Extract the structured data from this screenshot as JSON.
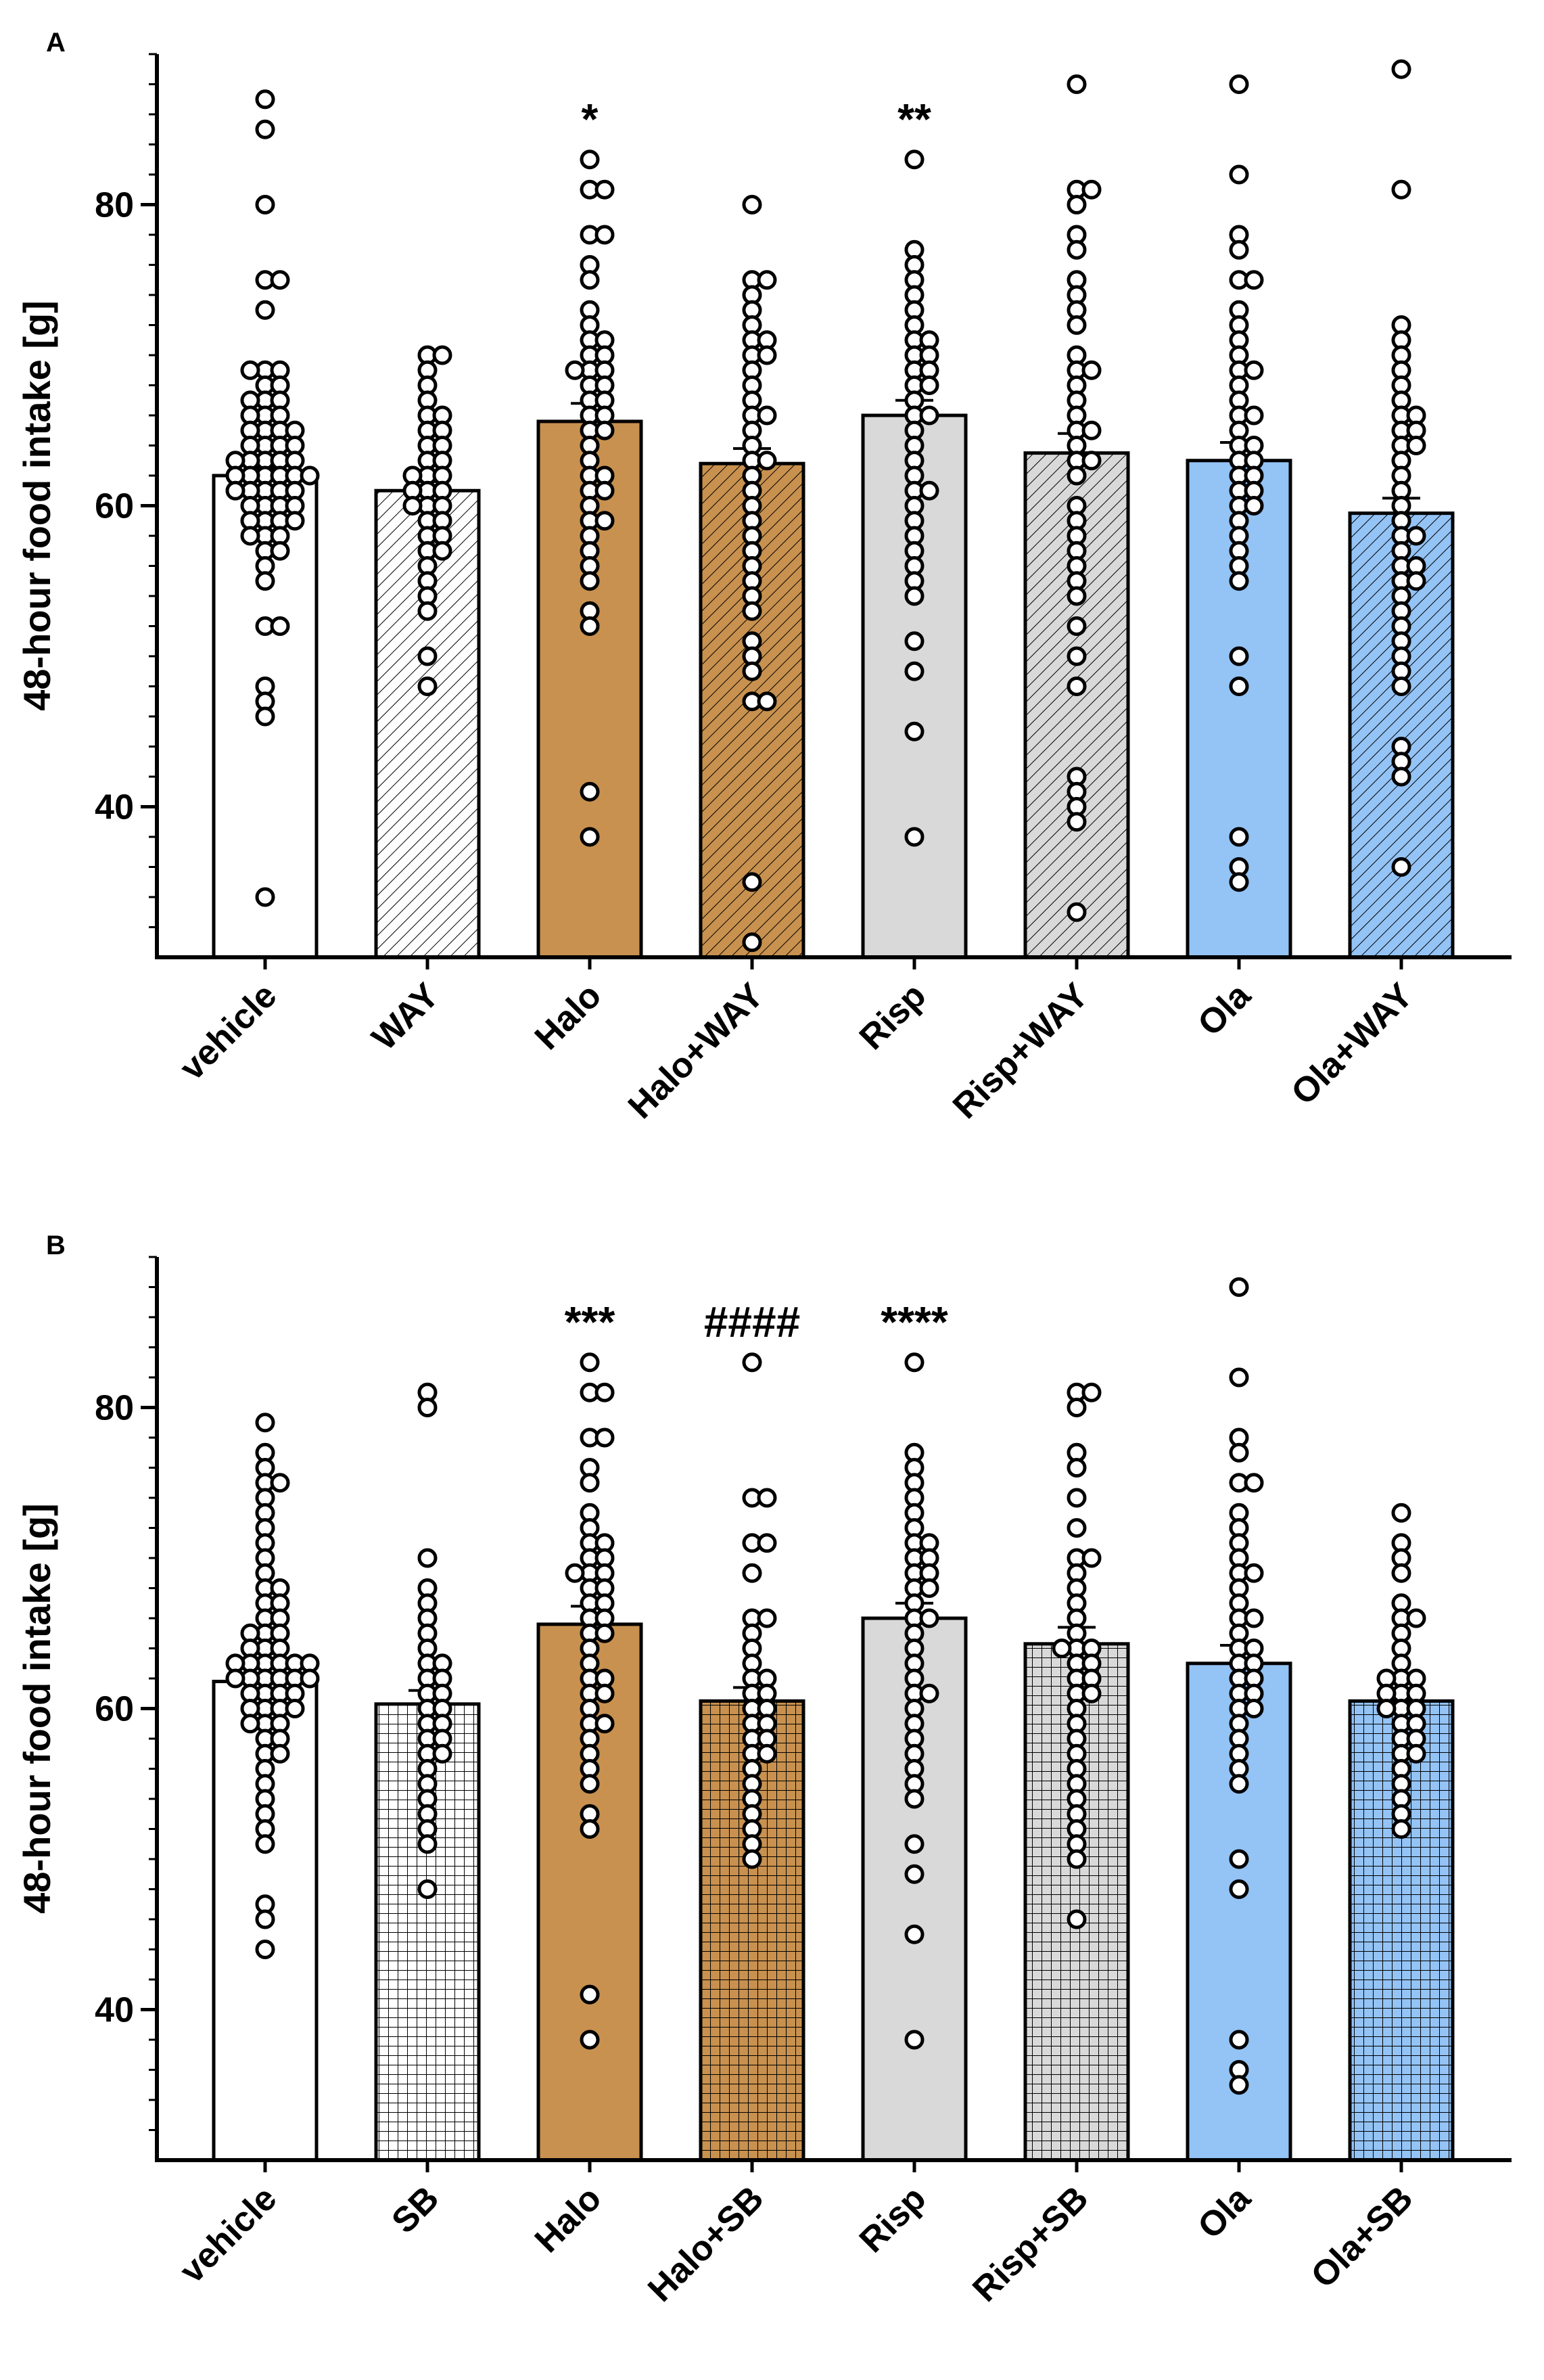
{
  "colors": {
    "white": "#ffffff",
    "halo": "#c8914f",
    "risp": "#d9d9d9",
    "ola": "#94c3f5",
    "axis": "#000000"
  },
  "chart_data": [
    {
      "type": "bar",
      "panel": "A",
      "ylabel": "48-hour food intake [g]",
      "ylim": [
        30,
        90
      ],
      "yticks": [
        40,
        60,
        80
      ],
      "categories": [
        "vehicle",
        "WAY",
        "Halo",
        "Halo+WAY",
        "Risp",
        "Risp+WAY",
        "Ola",
        "Ola+WAY"
      ],
      "values": [
        62,
        61,
        65.6,
        62.8,
        66,
        63.5,
        63,
        59.5
      ],
      "sem": [
        0.5,
        0.6,
        1.2,
        1.0,
        1.0,
        1.3,
        1.2,
        1.0
      ],
      "fills": [
        "white",
        "white",
        "halo",
        "halo",
        "risp",
        "risp",
        "ola",
        "ola"
      ],
      "patterns": [
        "none",
        "hatch",
        "none",
        "hatch",
        "none",
        "hatch",
        "none",
        "hatch"
      ],
      "significance": [
        "",
        "",
        "*",
        "",
        "**",
        "",
        "",
        ""
      ],
      "points": [
        [
          87,
          85,
          80,
          75,
          75,
          73,
          69,
          69,
          69,
          68,
          68,
          67,
          67,
          67,
          66,
          66,
          66,
          65,
          65,
          65,
          65,
          64,
          64,
          64,
          64,
          63,
          63,
          63,
          63,
          63,
          62,
          62,
          62,
          62,
          62,
          62,
          61,
          61,
          61,
          61,
          61,
          60,
          60,
          60,
          60,
          59,
          59,
          59,
          59,
          58,
          58,
          58,
          57,
          57,
          56,
          55,
          52,
          52,
          48,
          47,
          46,
          34
        ],
        [
          70,
          70,
          69,
          68,
          67,
          66,
          66,
          65,
          65,
          64,
          64,
          63,
          63,
          62,
          62,
          62,
          61,
          61,
          61,
          60,
          60,
          60,
          59,
          59,
          58,
          58,
          57,
          57,
          56,
          55,
          54,
          53,
          50,
          48
        ],
        [
          83,
          81,
          81,
          78,
          78,
          76,
          75,
          73,
          72,
          71,
          71,
          70,
          70,
          69,
          69,
          69,
          68,
          68,
          67,
          67,
          66,
          66,
          65,
          65,
          64,
          63,
          62,
          62,
          61,
          61,
          60,
          59,
          59,
          58,
          57,
          56,
          55,
          53,
          52,
          41,
          38
        ],
        [
          80,
          75,
          75,
          74,
          73,
          72,
          71,
          71,
          70,
          70,
          69,
          68,
          67,
          66,
          66,
          65,
          64,
          63,
          63,
          62,
          61,
          60,
          59,
          58,
          57,
          56,
          55,
          54,
          53,
          51,
          50,
          49,
          47,
          47,
          35,
          31
        ],
        [
          83,
          77,
          76,
          75,
          74,
          73,
          72,
          71,
          71,
          70,
          70,
          69,
          69,
          68,
          68,
          67,
          66,
          66,
          65,
          64,
          63,
          62,
          61,
          61,
          60,
          59,
          58,
          57,
          56,
          55,
          54,
          51,
          49,
          45,
          38
        ],
        [
          88,
          81,
          81,
          80,
          78,
          77,
          75,
          74,
          73,
          72,
          70,
          69,
          69,
          68,
          67,
          66,
          65,
          65,
          64,
          63,
          63,
          62,
          60,
          59,
          58,
          57,
          56,
          55,
          54,
          52,
          50,
          48,
          42,
          41,
          40,
          39,
          33
        ],
        [
          88,
          82,
          78,
          77,
          75,
          75,
          73,
          72,
          71,
          70,
          69,
          69,
          68,
          67,
          66,
          66,
          65,
          64,
          64,
          63,
          63,
          62,
          62,
          61,
          61,
          60,
          60,
          59,
          58,
          57,
          56,
          55,
          50,
          48,
          38,
          36,
          35
        ],
        [
          89,
          81,
          72,
          71,
          70,
          69,
          68,
          67,
          66,
          66,
          65,
          65,
          64,
          64,
          63,
          62,
          61,
          60,
          59,
          58,
          58,
          57,
          56,
          56,
          55,
          55,
          54,
          53,
          52,
          51,
          50,
          49,
          48,
          44,
          43,
          42,
          36
        ]
      ]
    },
    {
      "type": "bar",
      "panel": "B",
      "ylabel": "48-hour food intake [g]",
      "ylim": [
        30,
        90
      ],
      "yticks": [
        40,
        60,
        80
      ],
      "categories": [
        "vehicle",
        "SB",
        "Halo",
        "Halo+SB",
        "Risp",
        "Risp+SB",
        "Ola",
        "Ola+SB"
      ],
      "values": [
        61.8,
        60.3,
        65.6,
        60.5,
        66,
        64.3,
        63,
        60.5
      ],
      "sem": [
        0.4,
        0.9,
        1.2,
        0.9,
        1.0,
        1.1,
        1.2,
        0.6
      ],
      "fills": [
        "white",
        "white",
        "halo",
        "halo",
        "risp",
        "risp",
        "ola",
        "ola"
      ],
      "patterns": [
        "none",
        "grid",
        "none",
        "grid",
        "none",
        "grid",
        "none",
        "grid"
      ],
      "significance": [
        "",
        "",
        "***",
        "####",
        "****",
        "",
        "",
        ""
      ],
      "points": [
        [
          79,
          77,
          76,
          75,
          75,
          74,
          73,
          72,
          71,
          70,
          69,
          68,
          68,
          67,
          67,
          66,
          66,
          65,
          65,
          65,
          64,
          64,
          64,
          63,
          63,
          63,
          63,
          63,
          63,
          62,
          62,
          62,
          62,
          62,
          62,
          61,
          61,
          61,
          61,
          60,
          60,
          60,
          60,
          59,
          59,
          59,
          58,
          58,
          57,
          57,
          56,
          55,
          54,
          53,
          52,
          51,
          47,
          46,
          44
        ],
        [
          81,
          80,
          70,
          68,
          67,
          66,
          65,
          64,
          63,
          63,
          62,
          62,
          61,
          61,
          60,
          60,
          59,
          59,
          58,
          58,
          57,
          57,
          56,
          55,
          54,
          53,
          52,
          51,
          48
        ],
        [
          83,
          81,
          81,
          78,
          78,
          76,
          75,
          73,
          72,
          71,
          71,
          70,
          70,
          69,
          69,
          69,
          68,
          68,
          67,
          67,
          66,
          66,
          65,
          65,
          64,
          63,
          62,
          62,
          61,
          61,
          60,
          59,
          59,
          58,
          57,
          56,
          55,
          53,
          52,
          41,
          38
        ],
        [
          83,
          74,
          74,
          71,
          71,
          69,
          66,
          66,
          65,
          64,
          63,
          62,
          62,
          61,
          61,
          60,
          60,
          59,
          59,
          58,
          58,
          57,
          57,
          56,
          55,
          54,
          53,
          52,
          51,
          50
        ],
        [
          83,
          77,
          76,
          75,
          74,
          73,
          72,
          71,
          71,
          70,
          70,
          69,
          69,
          68,
          68,
          67,
          66,
          66,
          65,
          64,
          63,
          62,
          61,
          61,
          60,
          59,
          58,
          57,
          56,
          55,
          54,
          51,
          49,
          45,
          38
        ],
        [
          81,
          81,
          80,
          77,
          76,
          74,
          72,
          70,
          70,
          69,
          68,
          67,
          66,
          65,
          64,
          64,
          64,
          63,
          63,
          62,
          62,
          61,
          61,
          60,
          59,
          58,
          57,
          56,
          55,
          54,
          53,
          52,
          51,
          50,
          46
        ],
        [
          88,
          82,
          78,
          77,
          75,
          75,
          73,
          72,
          71,
          70,
          69,
          69,
          68,
          67,
          66,
          66,
          65,
          64,
          64,
          63,
          63,
          62,
          62,
          61,
          61,
          60,
          60,
          59,
          58,
          57,
          56,
          55,
          50,
          48,
          38,
          36,
          35
        ],
        [
          73,
          71,
          70,
          69,
          67,
          66,
          66,
          65,
          64,
          63,
          62,
          62,
          62,
          61,
          61,
          61,
          60,
          60,
          60,
          59,
          59,
          58,
          58,
          57,
          57,
          56,
          55,
          54,
          53,
          52
        ]
      ]
    }
  ]
}
